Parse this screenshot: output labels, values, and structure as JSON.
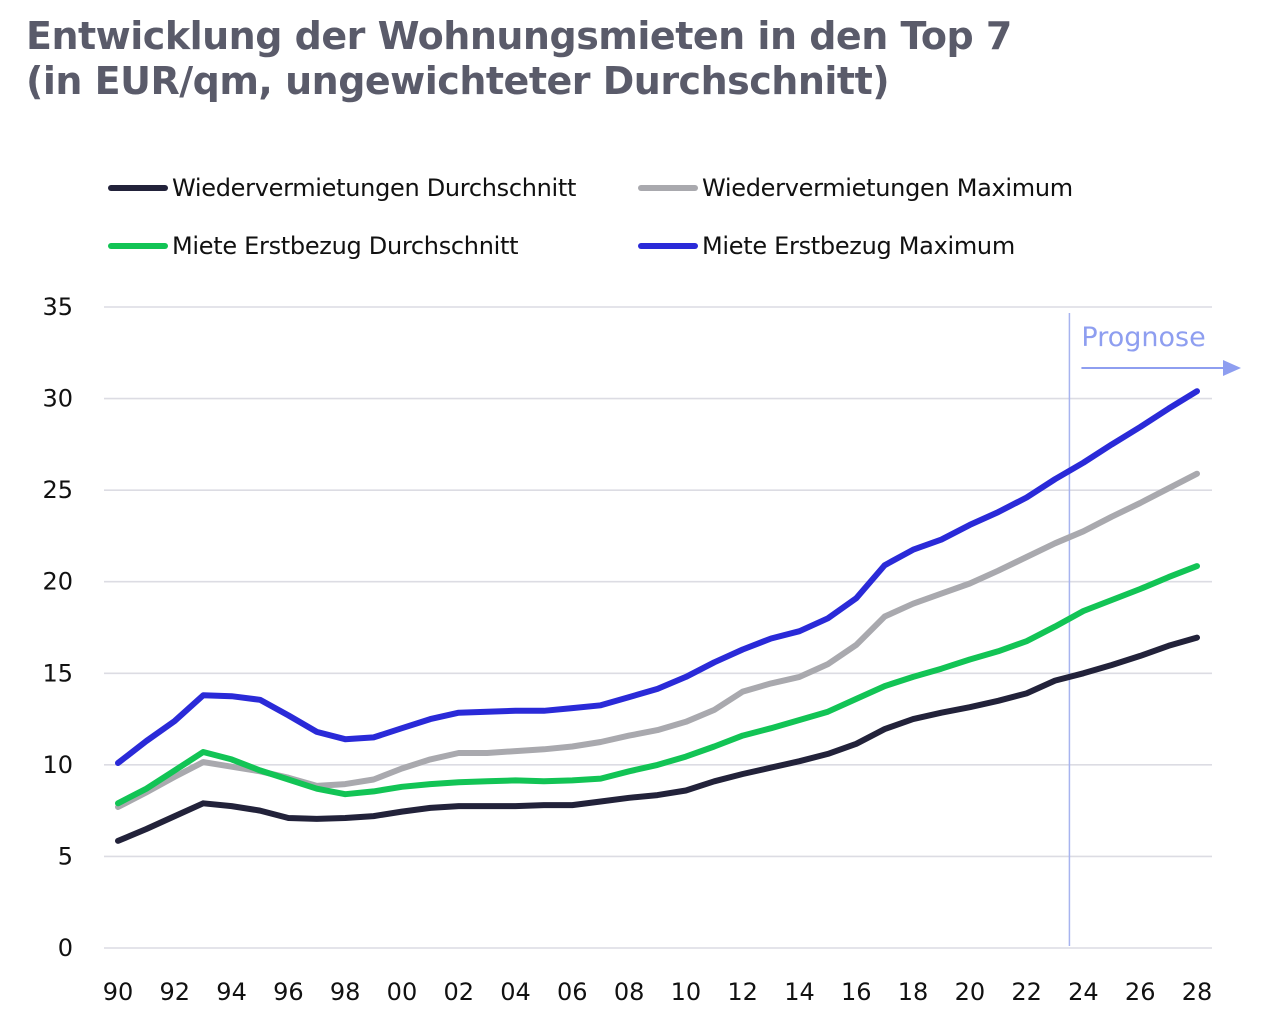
{
  "chart_data": {
    "type": "line",
    "title": "Entwicklung der Wohnungsmieten in den Top 7",
    "subtitle": "(in EUR/qm, ungewichteter Durchschnitt)",
    "xlabel": "",
    "ylabel": "",
    "x": [
      1990,
      1991,
      1992,
      1993,
      1994,
      1995,
      1996,
      1997,
      1998,
      1999,
      2000,
      2001,
      2002,
      2003,
      2004,
      2005,
      2006,
      2007,
      2008,
      2009,
      2010,
      2011,
      2012,
      2013,
      2014,
      2015,
      2016,
      2017,
      2018,
      2019,
      2020,
      2021,
      2022,
      2023,
      2024,
      2025,
      2026,
      2027,
      2028
    ],
    "xticks": [
      1990,
      1992,
      1994,
      1996,
      1998,
      2000,
      2002,
      2004,
      2006,
      2008,
      2010,
      2012,
      2014,
      2016,
      2018,
      2020,
      2022,
      2024,
      2026,
      2028
    ],
    "xtick_labels": [
      "90",
      "92",
      "94",
      "96",
      "98",
      "00",
      "02",
      "04",
      "06",
      "08",
      "10",
      "12",
      "14",
      "16",
      "18",
      "20",
      "22",
      "24",
      "26",
      "28"
    ],
    "xlim": [
      1990,
      2028
    ],
    "yticks": [
      0,
      5,
      10,
      15,
      20,
      25,
      30,
      35
    ],
    "ytick_labels": [
      "0",
      "5",
      "10",
      "15",
      "20",
      "25",
      "30",
      "35"
    ],
    "ylim": [
      0,
      35
    ],
    "grid": "horizontal",
    "legend_position": "top",
    "series": [
      {
        "name": "Wiedervermietungen Durchschnitt",
        "color": "#22223a",
        "values": [
          5.85,
          6.5,
          7.2,
          7.9,
          7.75,
          7.5,
          7.1,
          7.05,
          7.1,
          7.2,
          7.45,
          7.65,
          7.75,
          7.75,
          7.75,
          7.8,
          7.8,
          8.0,
          8.2,
          8.35,
          8.6,
          9.1,
          9.5,
          9.85,
          10.2,
          10.6,
          11.15,
          11.95,
          12.5,
          12.85,
          13.15,
          13.5,
          13.9,
          14.6,
          15.0,
          15.45,
          15.95,
          16.5,
          16.95
        ]
      },
      {
        "name": "Wiedervermietungen Maximum",
        "color": "#a9a9ae",
        "values": [
          7.7,
          8.5,
          9.35,
          10.15,
          9.9,
          9.65,
          9.3,
          8.85,
          8.95,
          9.2,
          9.8,
          10.3,
          10.65,
          10.65,
          10.75,
          10.85,
          11.0,
          11.25,
          11.6,
          11.9,
          12.35,
          13.0,
          14.0,
          14.45,
          14.8,
          15.5,
          16.55,
          18.1,
          18.8,
          19.35,
          19.9,
          20.6,
          21.35,
          22.1,
          22.75,
          23.55,
          24.3,
          25.1,
          25.9
        ]
      },
      {
        "name": "Miete Erstbezug Durchschnitt",
        "color": "#12c455",
        "values": [
          7.9,
          8.7,
          9.7,
          10.7,
          10.3,
          9.7,
          9.2,
          8.7,
          8.4,
          8.55,
          8.8,
          8.95,
          9.05,
          9.1,
          9.15,
          9.1,
          9.15,
          9.25,
          9.65,
          10.0,
          10.45,
          11.0,
          11.6,
          12.0,
          12.45,
          12.9,
          13.6,
          14.3,
          14.8,
          15.25,
          15.75,
          16.2,
          16.75,
          17.55,
          18.4,
          19.0,
          19.6,
          20.25,
          20.85
        ]
      },
      {
        "name": "Miete Erstbezug Maximum",
        "color": "#2a2ad8",
        "values": [
          10.1,
          11.3,
          12.4,
          13.8,
          13.75,
          13.55,
          12.7,
          11.8,
          11.4,
          11.5,
          12.0,
          12.5,
          12.85,
          12.9,
          12.95,
          12.95,
          13.1,
          13.25,
          13.7,
          14.15,
          14.8,
          15.6,
          16.3,
          16.9,
          17.3,
          18.0,
          19.1,
          20.9,
          21.75,
          22.3,
          23.1,
          23.8,
          24.6,
          25.6,
          26.5,
          27.5,
          28.45,
          29.45,
          30.4
        ]
      }
    ],
    "annotations": [
      {
        "type": "vertical-line",
        "x": 2024,
        "color": "#a7b4ef"
      },
      {
        "type": "label-arrow",
        "text": "Prognose",
        "direction": "right",
        "from_x": 2024,
        "color": "#8e9ef0"
      }
    ]
  }
}
